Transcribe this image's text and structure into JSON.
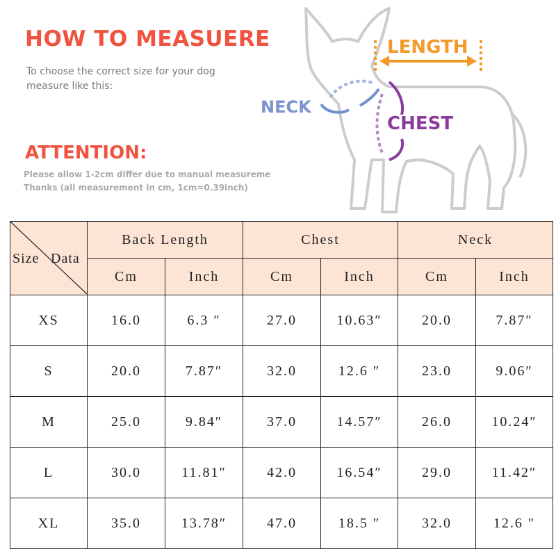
{
  "header": {
    "title": "HOW TO MEASUERE",
    "intro": [
      "To choose the correct size for your dog",
      "measure like this:"
    ],
    "attention": "ATTENTION:",
    "notes": [
      "Please allow 1-2cm differ due to manual measureme",
      "Thanks (all measurement in cm, 1cm=0.39inch)"
    ]
  },
  "diagram": {
    "length": "LENGTH",
    "neck": "NECK",
    "chest": "CHEST"
  },
  "table": {
    "corner": {
      "row": "Size",
      "col": "Data"
    },
    "groups": [
      "Back Length",
      "Chest",
      "Neck"
    ],
    "units": [
      "Cm",
      "Inch"
    ],
    "rows": [
      [
        "XS",
        "16.0",
        "6.3 ″",
        "27.0",
        "10.63″",
        "20.0",
        "7.87″"
      ],
      [
        "S",
        "20.0",
        "7.87″",
        "32.0",
        "12.6 ″",
        "23.0",
        "9.06″"
      ],
      [
        "M",
        "25.0",
        "9.84″",
        "37.0",
        "14.57″",
        "26.0",
        "10.24″"
      ],
      [
        "L",
        "30.0",
        "11.81″",
        "42.0",
        "16.54″",
        "29.0",
        "11.42″"
      ],
      [
        "XL",
        "35.0",
        "13.78″",
        "47.0",
        "18.5 ″",
        "32.0",
        "12.6 ″"
      ]
    ]
  }
}
